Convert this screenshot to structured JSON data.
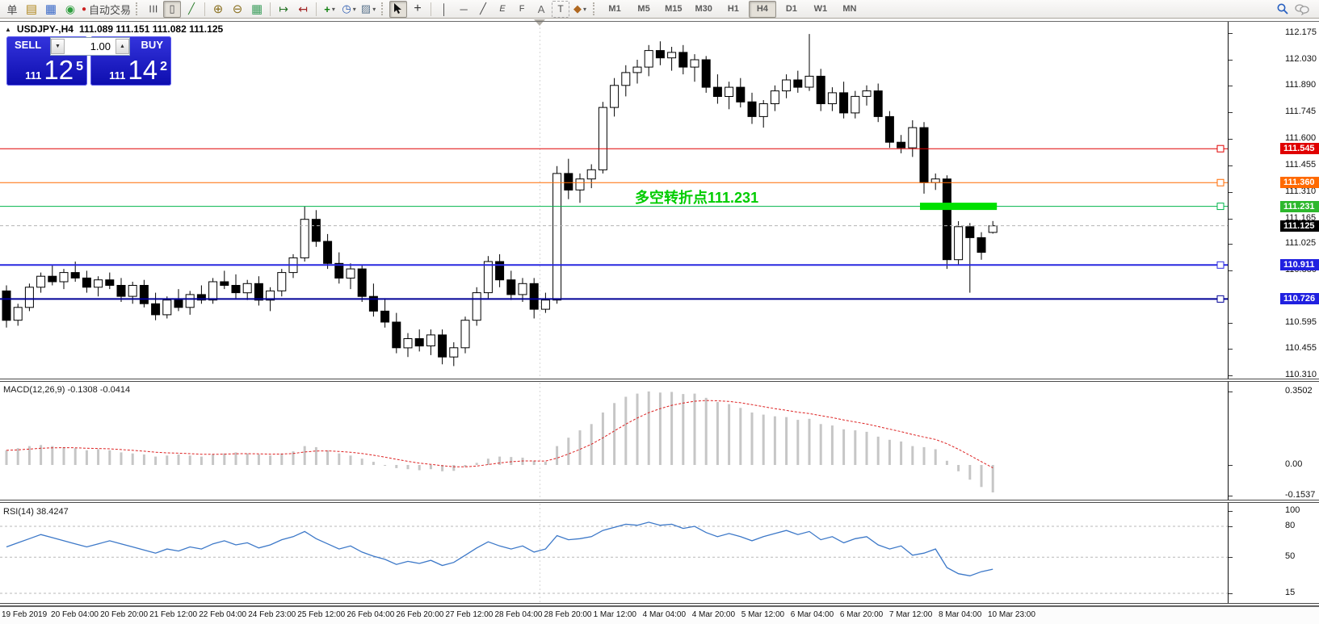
{
  "toolbar": {
    "new_order_text": "单",
    "autotrading_label": "自动交易",
    "timeframes": [
      "M1",
      "M5",
      "M15",
      "M30",
      "H1",
      "H4",
      "D1",
      "W1",
      "MN"
    ],
    "active_timeframe": "H4"
  },
  "icons": {
    "collapse": "▲",
    "dropdown": "▾",
    "spin_up": "▲",
    "spin_down": "▼",
    "market_watch": "▤",
    "new_chart": "▦",
    "alerts": "◉",
    "autotrading_dot": "●",
    "bar_chart": "☰",
    "candle_chart": "▯",
    "line_chart": "╱",
    "zoom_in": "⊕",
    "zoom_out": "⊖",
    "tile_windows": "▦",
    "auto_scroll": "↦",
    "chart_shift": "↤",
    "indicators_plus": "+",
    "periods_clock": "◷",
    "templates": "▨",
    "crosshair": "+",
    "vline": "│",
    "hline": "─",
    "trendline": "╱",
    "channel": "E",
    "fibonacci": "F",
    "text_tool": "A",
    "label_tool": "T",
    "shapes": "◆"
  },
  "chart_header": {
    "symbol_title": "USDJPY-,H4",
    "ohlc": "111.089 111.151 111.082 111.125"
  },
  "trade_panel": {
    "sell_label": "SELL",
    "buy_label": "BUY",
    "volume": "1.00",
    "sell": {
      "prefix": "111",
      "big": "12",
      "pip": "5"
    },
    "buy": {
      "prefix": "111",
      "big": "14",
      "pip": "2"
    }
  },
  "annotation": {
    "text": "多空转折点111.231"
  },
  "macd_panel": {
    "label": "MACD(12,26,9) -0.1308 -0.0414",
    "ticks": [
      "0.3502",
      "0.00",
      "-0.1537"
    ]
  },
  "rsi_panel": {
    "label": "RSI(14) 38.4247",
    "ticks": [
      "100",
      "80",
      "50",
      "15"
    ]
  },
  "price_axis": {
    "ticks": [
      "112.175",
      "112.030",
      "111.890",
      "111.745",
      "111.600",
      "111.455",
      "111.310",
      "111.165",
      "111.025",
      "110.880",
      "110.595",
      "110.455",
      "110.310"
    ]
  },
  "time_axis": {
    "labels": [
      "19 Feb 2019",
      "20 Feb 04:00",
      "20 Feb 20:00",
      "21 Feb 12:00",
      "22 Feb 04:00",
      "24 Feb 23:00",
      "25 Feb 12:00",
      "26 Feb 04:00",
      "26 Feb 20:00",
      "27 Feb 12:00",
      "28 Feb 04:00",
      "28 Feb 20:00",
      "1 Mar 12:00",
      "4 Mar 04:00",
      "4 Mar 20:00",
      "5 Mar 12:00",
      "6 Mar 04:00",
      "6 Mar 20:00",
      "7 Mar 12:00",
      "8 Mar 04:00",
      "10 Mar 23:00"
    ]
  },
  "colors": {
    "level_red": "#e00000",
    "level_orange": "#ff6a00",
    "level_green": "#00b44b",
    "level_blue": "#2828e0",
    "level_navy": "#000096",
    "bid_line": "#b4b4b4",
    "bid_badge": "#000000",
    "thick_green": "#00e000",
    "annotation_green": "#00cc00",
    "macd_bar": "#c6c6c6",
    "macd_signal": "#dd2222",
    "rsi_line": "#3c78c8",
    "rsi_grid": "#b8b8b8",
    "bull_candle": "#ffffff",
    "bear_candle": "#000000"
  },
  "chart_data": [
    {
      "type": "candlestick",
      "symbol": "USDJPY-",
      "timeframe": "H4",
      "ylim": [
        110.31,
        112.175
      ],
      "current_price": 111.125,
      "levels": [
        {
          "price": 111.545,
          "label": "111.545",
          "color": "#e00000",
          "badge": "#e00000",
          "width": 1
        },
        {
          "price": 111.36,
          "label": "111.360",
          "color": "#ff6a00",
          "badge": "#ff6a00",
          "width": 1
        },
        {
          "price": 111.231,
          "label": "111.231",
          "color": "#00b44b",
          "badge": "#2db82d",
          "width": 1
        },
        {
          "price": 110.911,
          "label": "110.911",
          "color": "#2828e0",
          "badge": "#2020e0",
          "width": 2
        },
        {
          "price": 110.726,
          "label": "110.726",
          "color": "#000096",
          "badge": "#2020e0",
          "width": 2
        },
        {
          "price": 111.125,
          "label": "111.125",
          "color": "#b4b4b4",
          "badge": "#000000",
          "width": 1,
          "dash": true
        }
      ],
      "green_segment": {
        "price": 111.231,
        "from_bar": 80,
        "to_bar": 86
      },
      "ohlc": [
        [
          110.77,
          110.8,
          110.57,
          110.61
        ],
        [
          110.61,
          110.7,
          110.58,
          110.68
        ],
        [
          110.68,
          110.81,
          110.66,
          110.79
        ],
        [
          110.79,
          110.87,
          110.76,
          110.85
        ],
        [
          110.85,
          110.91,
          110.8,
          110.82
        ],
        [
          110.82,
          110.89,
          110.78,
          110.87
        ],
        [
          110.87,
          110.93,
          110.82,
          110.84
        ],
        [
          110.84,
          110.88,
          110.76,
          110.79
        ],
        [
          110.79,
          110.85,
          110.74,
          110.83
        ],
        [
          110.83,
          110.87,
          110.78,
          110.8
        ],
        [
          110.8,
          110.84,
          110.71,
          110.74
        ],
        [
          110.74,
          110.82,
          110.7,
          110.8
        ],
        [
          110.8,
          110.83,
          110.68,
          110.7
        ],
        [
          110.7,
          110.76,
          110.61,
          110.64
        ],
        [
          110.64,
          110.74,
          110.62,
          110.72
        ],
        [
          110.72,
          110.78,
          110.66,
          110.68
        ],
        [
          110.68,
          110.77,
          110.64,
          110.75
        ],
        [
          110.75,
          110.8,
          110.7,
          110.72
        ],
        [
          110.72,
          110.84,
          110.7,
          110.82
        ],
        [
          110.82,
          110.88,
          110.78,
          110.8
        ],
        [
          110.8,
          110.86,
          110.73,
          110.76
        ],
        [
          110.76,
          110.83,
          110.72,
          110.81
        ],
        [
          110.81,
          110.85,
          110.69,
          110.72
        ],
        [
          110.72,
          110.79,
          110.66,
          110.77
        ],
        [
          110.77,
          110.89,
          110.74,
          110.87
        ],
        [
          110.87,
          110.97,
          110.84,
          110.95
        ],
        [
          110.95,
          111.23,
          110.93,
          111.16
        ],
        [
          111.16,
          111.21,
          111.01,
          111.04
        ],
        [
          111.04,
          111.08,
          110.89,
          110.92
        ],
        [
          110.92,
          110.98,
          110.81,
          110.84
        ],
        [
          110.84,
          110.92,
          110.78,
          110.89
        ],
        [
          110.89,
          110.91,
          110.71,
          110.74
        ],
        [
          110.74,
          110.81,
          110.63,
          110.66
        ],
        [
          110.66,
          110.73,
          110.57,
          110.6
        ],
        [
          110.6,
          110.65,
          110.43,
          110.46
        ],
        [
          110.46,
          110.54,
          110.41,
          110.51
        ],
        [
          110.51,
          110.56,
          110.44,
          110.47
        ],
        [
          110.47,
          110.56,
          110.42,
          110.53
        ],
        [
          110.53,
          110.56,
          110.37,
          110.41
        ],
        [
          110.41,
          110.49,
          110.36,
          110.46
        ],
        [
          110.46,
          110.63,
          110.43,
          110.61
        ],
        [
          110.61,
          110.79,
          110.58,
          110.76
        ],
        [
          110.76,
          110.96,
          110.73,
          110.93
        ],
        [
          110.93,
          110.97,
          110.79,
          110.83
        ],
        [
          110.83,
          110.88,
          110.72,
          110.75
        ],
        [
          110.75,
          110.84,
          110.71,
          110.81
        ],
        [
          110.81,
          110.84,
          110.62,
          110.67
        ],
        [
          110.67,
          110.76,
          110.65,
          110.72
        ],
        [
          110.72,
          111.45,
          110.7,
          111.41
        ],
        [
          111.41,
          111.49,
          111.27,
          111.32
        ],
        [
          111.32,
          111.41,
          111.25,
          111.38
        ],
        [
          111.38,
          111.46,
          111.33,
          111.43
        ],
        [
          111.43,
          111.8,
          111.41,
          111.77
        ],
        [
          111.77,
          111.93,
          111.72,
          111.89
        ],
        [
          111.89,
          112.0,
          111.83,
          111.96
        ],
        [
          111.96,
          112.03,
          111.9,
          111.99
        ],
        [
          111.99,
          112.11,
          111.94,
          112.08
        ],
        [
          112.08,
          112.13,
          112.0,
          112.04
        ],
        [
          112.04,
          112.1,
          111.97,
          112.07
        ],
        [
          112.07,
          112.11,
          111.95,
          111.99
        ],
        [
          111.99,
          112.06,
          111.91,
          112.03
        ],
        [
          112.03,
          112.05,
          111.85,
          111.88
        ],
        [
          111.88,
          111.95,
          111.79,
          111.83
        ],
        [
          111.83,
          111.91,
          111.76,
          111.88
        ],
        [
          111.88,
          111.93,
          111.77,
          111.8
        ],
        [
          111.8,
          111.85,
          111.68,
          111.72
        ],
        [
          111.72,
          111.81,
          111.66,
          111.79
        ],
        [
          111.79,
          111.89,
          111.75,
          111.86
        ],
        [
          111.86,
          111.95,
          111.82,
          111.92
        ],
        [
          111.92,
          111.97,
          111.85,
          111.88
        ],
        [
          111.88,
          112.17,
          111.86,
          111.94
        ],
        [
          111.94,
          111.98,
          111.75,
          111.79
        ],
        [
          111.79,
          111.88,
          111.75,
          111.85
        ],
        [
          111.85,
          111.91,
          111.71,
          111.74
        ],
        [
          111.74,
          111.86,
          111.71,
          111.83
        ],
        [
          111.83,
          111.89,
          111.78,
          111.86
        ],
        [
          111.86,
          111.9,
          111.69,
          111.72
        ],
        [
          111.72,
          111.75,
          111.55,
          111.58
        ],
        [
          111.58,
          111.62,
          111.52,
          111.55
        ],
        [
          111.55,
          111.7,
          111.5,
          111.66
        ],
        [
          111.66,
          111.69,
          111.3,
          111.36
        ],
        [
          111.36,
          111.41,
          111.32,
          111.38
        ],
        [
          111.38,
          111.4,
          110.89,
          110.94
        ],
        [
          110.94,
          111.15,
          110.91,
          111.12
        ],
        [
          111.12,
          111.14,
          110.76,
          111.06
        ],
        [
          111.06,
          111.09,
          110.94,
          110.98
        ],
        [
          111.089,
          111.151,
          111.082,
          111.125
        ]
      ]
    },
    {
      "type": "bar",
      "name": "MACD histogram",
      "params": "12,26,9",
      "last_macd": -0.1308,
      "last_signal": -0.0414,
      "ylim": [
        -0.1537,
        0.3502
      ],
      "values": [
        0.07,
        0.08,
        0.09,
        0.095,
        0.09,
        0.085,
        0.08,
        0.07,
        0.075,
        0.07,
        0.06,
        0.055,
        0.05,
        0.04,
        0.045,
        0.05,
        0.045,
        0.04,
        0.05,
        0.055,
        0.06,
        0.055,
        0.05,
        0.045,
        0.055,
        0.065,
        0.09,
        0.085,
        0.07,
        0.055,
        0.045,
        0.03,
        0.015,
        0.0,
        -0.015,
        -0.02,
        -0.025,
        -0.02,
        -0.03,
        -0.028,
        -0.01,
        0.01,
        0.03,
        0.04,
        0.038,
        0.035,
        0.02,
        0.015,
        0.09,
        0.13,
        0.165,
        0.195,
        0.25,
        0.295,
        0.325,
        0.34,
        0.3502,
        0.345,
        0.348,
        0.338,
        0.34,
        0.32,
        0.3,
        0.29,
        0.272,
        0.25,
        0.24,
        0.232,
        0.228,
        0.215,
        0.22,
        0.195,
        0.188,
        0.17,
        0.165,
        0.158,
        0.135,
        0.12,
        0.112,
        0.09,
        0.085,
        0.075,
        0.02,
        -0.03,
        -0.07,
        -0.105,
        -0.1308
      ]
    },
    {
      "type": "line",
      "name": "RSI",
      "period": 14,
      "last": 38.4247,
      "ylim": [
        0,
        100
      ],
      "levels": [
        80,
        50,
        15
      ],
      "values": [
        60,
        64,
        68,
        72,
        69,
        66,
        63,
        60,
        63,
        66,
        63,
        60,
        57,
        54,
        58,
        56,
        60,
        58,
        63,
        66,
        62,
        64,
        59,
        62,
        67,
        70,
        75,
        68,
        63,
        58,
        61,
        55,
        51,
        48,
        43,
        46,
        44,
        47,
        42,
        45,
        52,
        59,
        65,
        61,
        58,
        61,
        55,
        58,
        71,
        67,
        68,
        70,
        76,
        79,
        82,
        81,
        84,
        81,
        82,
        78,
        80,
        74,
        70,
        73,
        70,
        66,
        70,
        73,
        76,
        72,
        75,
        67,
        70,
        64,
        68,
        70,
        62,
        58,
        61,
        52,
        54,
        58,
        40,
        34,
        32,
        36,
        38.42
      ]
    }
  ]
}
